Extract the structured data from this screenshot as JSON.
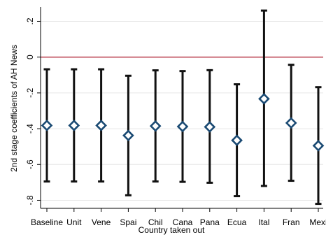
{
  "chart_data": {
    "type": "scatter",
    "title": "",
    "xlabel": "Country taken out",
    "ylabel": "2nd stage coefficients of AH News",
    "categories": [
      "Baseline",
      "Unit",
      "Vene",
      "Spai",
      "Chil",
      "Cana",
      "Pana",
      "Ecua",
      "Ital",
      "Fran",
      "Mexi"
    ],
    "points": [
      {
        "label": "Baseline",
        "estimate": -0.382,
        "ci_low": -0.695,
        "ci_high": -0.068
      },
      {
        "label": "Unit",
        "estimate": -0.382,
        "ci_low": -0.695,
        "ci_high": -0.068
      },
      {
        "label": "Vene",
        "estimate": -0.382,
        "ci_low": -0.695,
        "ci_high": -0.068
      },
      {
        "label": "Spai",
        "estimate": -0.438,
        "ci_low": -0.772,
        "ci_high": -0.104
      },
      {
        "label": "Chil",
        "estimate": -0.385,
        "ci_low": -0.695,
        "ci_high": -0.074
      },
      {
        "label": "Cana",
        "estimate": -0.388,
        "ci_low": -0.697,
        "ci_high": -0.078
      },
      {
        "label": "Pana",
        "estimate": -0.39,
        "ci_low": -0.702,
        "ci_high": -0.073
      },
      {
        "label": "Ecua",
        "estimate": -0.465,
        "ci_low": -0.777,
        "ci_high": -0.152
      },
      {
        "label": "Ital",
        "estimate": -0.233,
        "ci_low": -0.72,
        "ci_high": 0.26
      },
      {
        "label": "Fran",
        "estimate": -0.368,
        "ci_low": -0.691,
        "ci_high": -0.043
      },
      {
        "label": "Mexi",
        "estimate": -0.495,
        "ci_low": -0.82,
        "ci_high": -0.168
      }
    ],
    "yticks": [
      0.2,
      0,
      -0.2,
      -0.4,
      -0.6,
      -0.8
    ],
    "ytick_labels": [
      ".2",
      "0",
      "-.2",
      "-.4",
      "-.6",
      "-.8"
    ],
    "ylim": [
      -0.845,
      0.28
    ],
    "reference_line": 0,
    "grid": true,
    "legend": "none",
    "colors": {
      "marker": "#1a4a73",
      "ci": "#111111",
      "reference": "#b22a3a",
      "grid": "#e6e6e6",
      "axis": "#000000"
    }
  }
}
